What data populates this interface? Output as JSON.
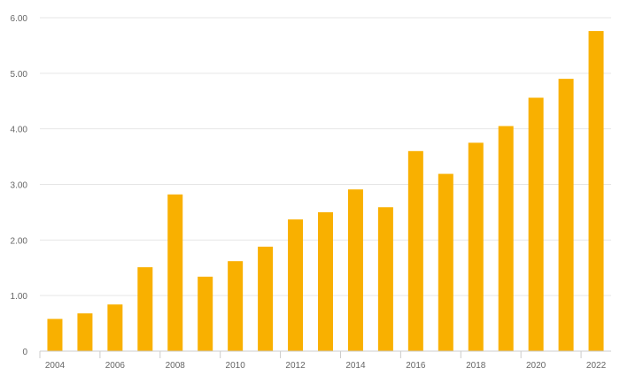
{
  "chart_data": {
    "type": "bar",
    "categories": [
      "2004",
      "2005",
      "2006",
      "2007",
      "2008",
      "2009",
      "2010",
      "2011",
      "2012",
      "2013",
      "2014",
      "2015",
      "2016",
      "2017",
      "2018",
      "2019",
      "2020",
      "2021",
      "2022"
    ],
    "values": [
      0.58,
      0.68,
      0.84,
      1.51,
      2.82,
      1.34,
      1.62,
      1.88,
      2.37,
      2.5,
      2.91,
      2.59,
      3.6,
      3.19,
      3.75,
      4.05,
      4.56,
      4.9,
      5.76
    ],
    "x_tick_labels": [
      "2004",
      "2006",
      "2008",
      "2010",
      "2012",
      "2014",
      "2016",
      "2018",
      "2020",
      "2022"
    ],
    "y_tick_labels": [
      "0",
      "1.00",
      "2.00",
      "3.00",
      "4.00",
      "5.00",
      "6.00"
    ],
    "title": "",
    "xlabel": "",
    "ylabel": "",
    "ylim": [
      0,
      6
    ],
    "grid": true,
    "legend": "none",
    "colors": {
      "bar": "#f9b000",
      "grid": "#e6e6e6",
      "axis": "#cccccc",
      "tick_text": "#666666"
    }
  }
}
